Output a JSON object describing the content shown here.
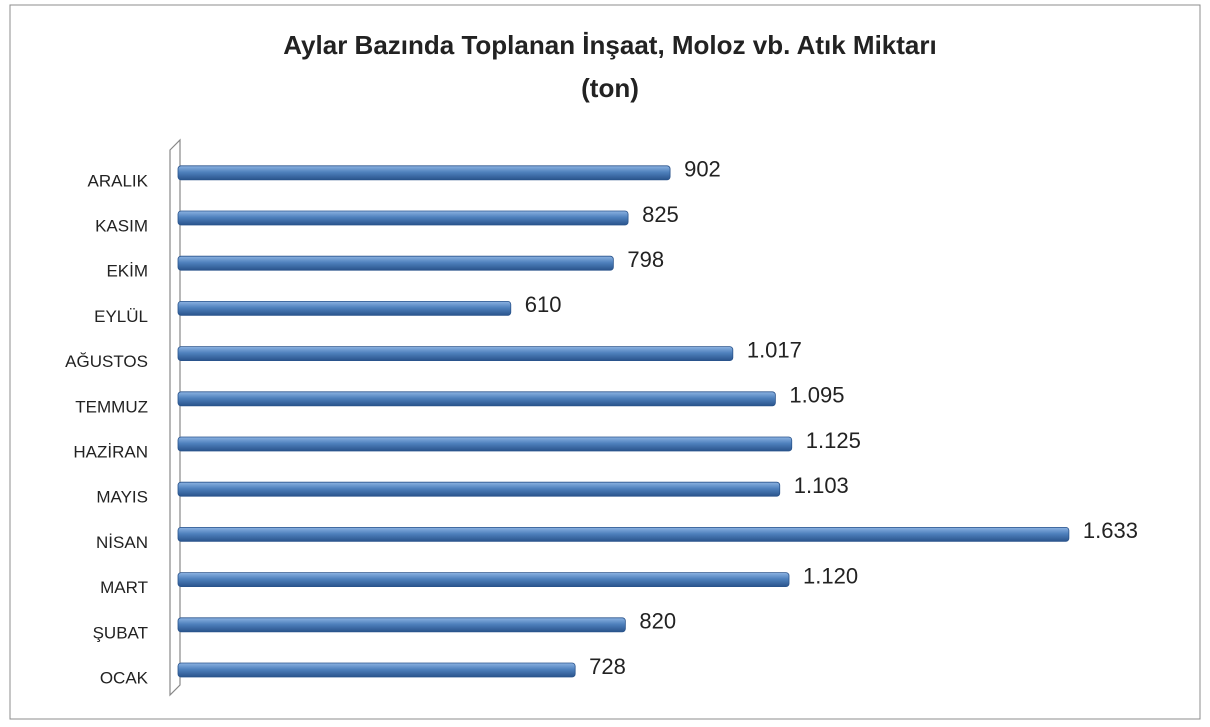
{
  "chart_data": {
    "type": "bar",
    "orientation": "horizontal",
    "title": "Aylar Bazında Toplanan İnşaat, Moloz vb. Atık Miktarı",
    "subtitle": "(ton)",
    "categories": [
      "OCAK",
      "ŞUBAT",
      "MART",
      "NİSAN",
      "MAYIS",
      "HAZİRAN",
      "TEMMUZ",
      "AĞUSTOS",
      "EYLÜL",
      "EKİM",
      "KASIM",
      "ARALIK"
    ],
    "values": [
      728,
      820,
      1120,
      1633,
      1103,
      1125,
      1095,
      1017,
      610,
      798,
      825,
      902
    ],
    "value_labels": [
      "728",
      "820",
      "1.120",
      "1.633",
      "1.103",
      "1.125",
      "1.095",
      "1.017",
      "610",
      "798",
      "825",
      "902"
    ],
    "color": "#4f81bd",
    "xlim": [
      0,
      1800
    ]
  }
}
